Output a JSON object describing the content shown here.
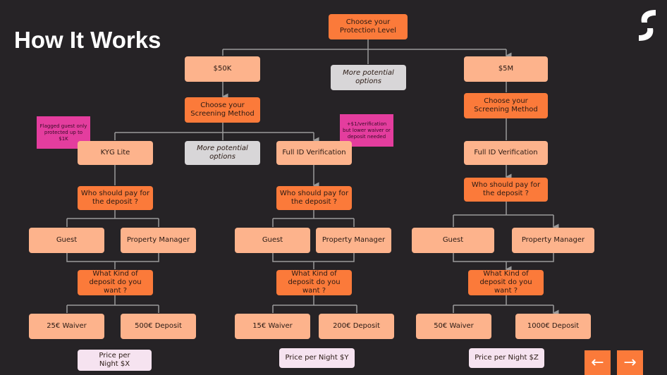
{
  "title": "How It Works",
  "logo": "S",
  "colors": {
    "background": "#262326",
    "decision": "#fb7a3a",
    "option": "#fdb38c",
    "note": "#e43d9e",
    "more": "#d8d6d8",
    "price": "#f6e3f0"
  },
  "nodes": {
    "root": "Choose your Protection Level",
    "p50k": "$50K",
    "more_top": "More potential options",
    "p5m": "$5M",
    "screen_50k": "Choose your Screening Method",
    "screen_5m": "Choose your Screening Method",
    "note_flagged": "Flagged guest only protected up to $1K",
    "note_verification": "+$1/verification but lower waiver or deposit needed",
    "kyg": "KYG Lite",
    "more_mid": "More potential options",
    "fullid": "Full ID Verification",
    "fullid_5m": "Full ID Verification",
    "who1": "Who should pay for the deposit ?",
    "who2": "Who should pay for the deposit ?",
    "who3": "Who should pay for the deposit ?",
    "guest1": "Guest",
    "pm1": "Property Manager",
    "guest2": "Guest",
    "pm2": "Property Manager",
    "guest3": "Guest",
    "pm3": "Property Manager",
    "kind1": "What Kind of deposit do you want ?",
    "kind2": "What Kind of deposit do you want ?",
    "kind3": "What Kind of deposit do you want ?",
    "w1": "25€ Waiver",
    "d1": "500€ Deposit",
    "w2": "15€ Waiver",
    "d2": "200€ Deposit",
    "w3": "50€ Waiver",
    "d3": "1000€ Deposit",
    "price1": "Price per Night $X",
    "price2": "Price per Night $Y",
    "price3": "Price per Night $Z"
  },
  "nav": {
    "prev_icon": "arrow-left-icon",
    "next_icon": "arrow-right-icon",
    "prev": "←",
    "next": "→"
  }
}
